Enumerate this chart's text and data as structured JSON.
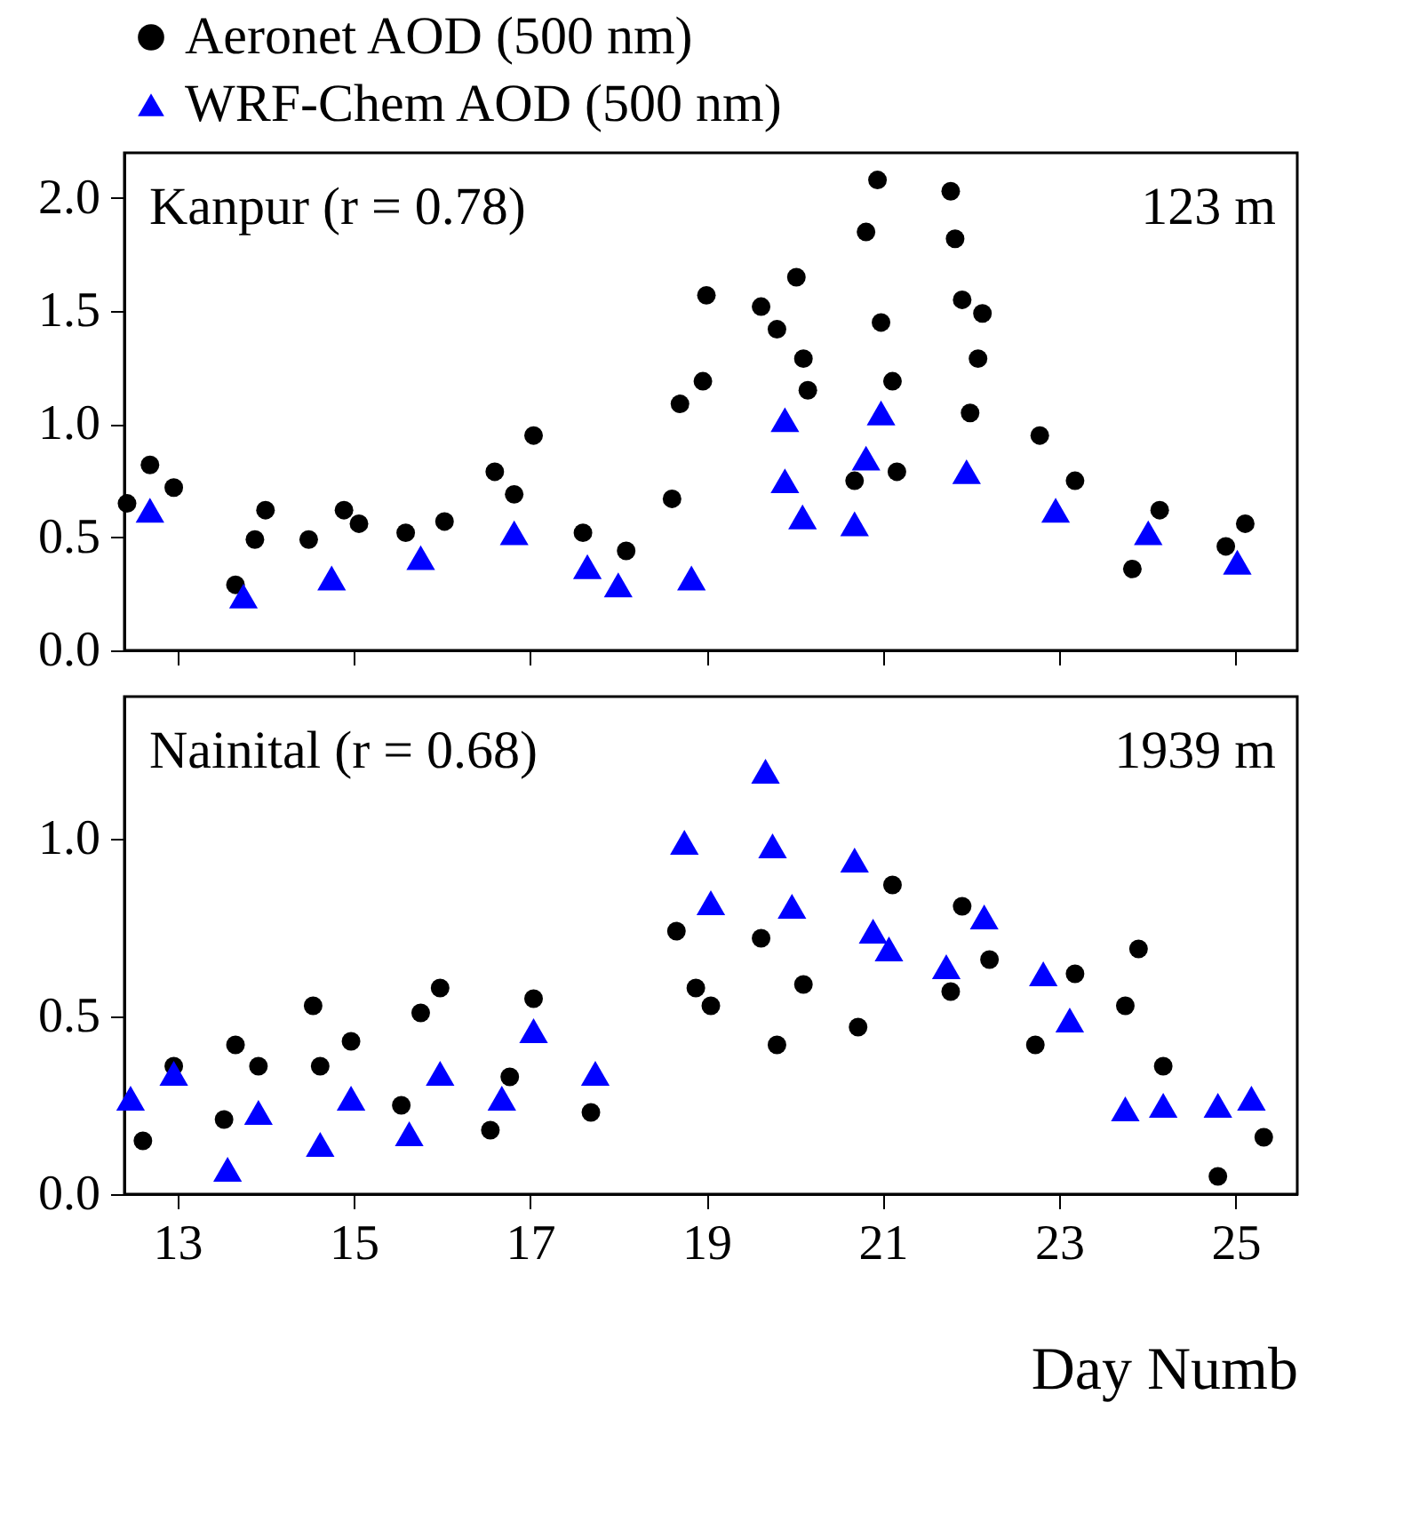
{
  "chart_data": [
    {
      "type": "scatter",
      "xlim": [
        12.4,
        25.7
      ],
      "xticks": [
        13,
        15,
        17,
        19,
        21,
        23,
        25
      ],
      "ylim": [
        0,
        2.2
      ],
      "yticks": [
        {
          "value": 0,
          "label": "0.0"
        },
        {
          "value": 0.5,
          "label": "0.5"
        },
        {
          "value": 1,
          "label": "1.0"
        },
        {
          "value": 1.5,
          "label": "1.5"
        },
        {
          "value": 2,
          "label": "2.0"
        }
      ],
      "tick_labels": "y",
      "grid": false,
      "legend": "top",
      "annotations": [
        "Kanpur (r = 0.78)",
        "123 m"
      ],
      "series": [
        {
          "name": "Aeronet AOD (500 nm)",
          "color": "#000000",
          "marker": "circle",
          "x": [
            12.43,
            12.69,
            12.96,
            13.66,
            13.88,
            14.0,
            14.49,
            14.89,
            15.06,
            15.59,
            16.03,
            16.6,
            16.82,
            17.04,
            17.6,
            18.09,
            18.61,
            18.7,
            18.96,
            19.0,
            19.62,
            19.8,
            20.02,
            20.1,
            20.15,
            20.68,
            20.81,
            20.94,
            20.98,
            21.11,
            21.16,
            21.77,
            21.82,
            21.9,
            22.13,
            22.08,
            21.99,
            22.78,
            23.18,
            23.83,
            24.14,
            24.89,
            25.11
          ],
          "values": [
            0.65,
            0.82,
            0.72,
            0.29,
            0.49,
            0.62,
            0.49,
            0.62,
            0.56,
            0.52,
            0.57,
            0.79,
            0.69,
            0.95,
            0.52,
            0.44,
            0.67,
            1.09,
            1.19,
            1.57,
            1.52,
            1.42,
            1.65,
            1.29,
            1.15,
            0.75,
            1.85,
            2.08,
            1.45,
            1.19,
            0.79,
            2.03,
            1.82,
            1.55,
            1.49,
            1.29,
            1.05,
            0.95,
            0.75,
            0.36,
            0.62,
            0.46,
            0.56
          ]
        },
        {
          "name": "WRF-Chem AOD (500 nm)",
          "color": "#0000ff",
          "marker": "triangle",
          "x": [
            12.69,
            13.75,
            14.75,
            15.76,
            16.82,
            17.65,
            18.0,
            18.83,
            19.89,
            19.89,
            20.09,
            20.68,
            20.81,
            20.98,
            21.95,
            22.96,
            24.01,
            25.02
          ],
          "values": [
            0.62,
            0.24,
            0.32,
            0.41,
            0.52,
            0.37,
            0.29,
            0.32,
            1.02,
            0.75,
            0.59,
            0.56,
            0.85,
            1.05,
            0.79,
            0.62,
            0.52,
            0.39
          ]
        }
      ]
    },
    {
      "type": "scatter",
      "xlabel": "Day Numb",
      "xlim": [
        12.4,
        25.7
      ],
      "xticks": [
        13,
        15,
        17,
        19,
        21,
        23,
        25
      ],
      "ylim": [
        0,
        1.4
      ],
      "yticks": [
        {
          "value": 0,
          "label": "0.0"
        },
        {
          "value": 0.5,
          "label": "0.5"
        },
        {
          "value": 1,
          "label": "1.0"
        }
      ],
      "grid": false,
      "annotations": [
        "Nainital (r = 0.68)",
        "1939 m"
      ],
      "series": [
        {
          "color": "#000000",
          "marker": "circle",
          "x": [
            12.61,
            12.96,
            13.53,
            13.66,
            13.92,
            14.54,
            14.62,
            14.97,
            15.54,
            15.76,
            15.98,
            16.55,
            16.77,
            17.04,
            17.69,
            18.66,
            18.88,
            19.05,
            19.62,
            19.8,
            20.1,
            20.72,
            21.11,
            21.77,
            21.9,
            22.21,
            22.73,
            23.18,
            23.75,
            23.9,
            24.18,
            24.8,
            25.32
          ],
          "values": [
            0.15,
            0.36,
            0.21,
            0.42,
            0.36,
            0.53,
            0.36,
            0.43,
            0.25,
            0.51,
            0.58,
            0.18,
            0.33,
            0.55,
            0.23,
            0.74,
            0.58,
            0.53,
            0.72,
            0.42,
            0.59,
            0.47,
            0.87,
            0.57,
            0.81,
            0.66,
            0.42,
            0.62,
            0.53,
            0.69,
            0.36,
            0.05,
            0.16
          ]
        },
        {
          "color": "#0000ff",
          "marker": "triangle",
          "x": [
            12.47,
            12.96,
            13.57,
            13.92,
            14.62,
            14.97,
            15.63,
            15.98,
            16.68,
            17.04,
            17.74,
            18.75,
            19.05,
            19.67,
            19.75,
            19.97,
            20.68,
            20.89,
            21.07,
            21.72,
            22.15,
            22.82,
            23.12,
            23.75,
            24.18,
            24.8,
            25.18
          ],
          "values": [
            0.27,
            0.34,
            0.07,
            0.23,
            0.14,
            0.27,
            0.17,
            0.34,
            0.27,
            0.46,
            0.34,
            0.99,
            0.82,
            1.19,
            0.98,
            0.81,
            0.94,
            0.74,
            0.69,
            0.64,
            0.78,
            0.62,
            0.49,
            0.24,
            0.25,
            0.25,
            0.27
          ]
        }
      ]
    }
  ]
}
